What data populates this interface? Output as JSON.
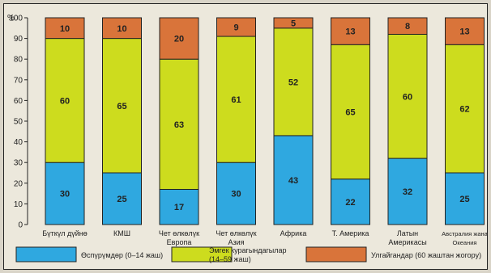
{
  "chart_data": {
    "type": "bar",
    "stacked": true,
    "percent_stacked": true,
    "ylabel": "%",
    "ylim": [
      0,
      100
    ],
    "yticks": [
      0,
      10,
      20,
      30,
      40,
      50,
      60,
      70,
      80,
      90,
      100
    ],
    "categories": [
      [
        "Бүткүл дүйнө"
      ],
      [
        "КМШ"
      ],
      [
        "Чет өлкөлүк",
        "Европа"
      ],
      [
        "Чет өлкөлүк",
        "Азия"
      ],
      [
        "Африка"
      ],
      [
        "Т. Америка"
      ],
      [
        "Латын",
        "Америкасы"
      ],
      [
        "Австралия жана",
        "Океания"
      ]
    ],
    "series": [
      {
        "name": "Өспүрүмдөр (0–14 жаш)",
        "color": "#2fa8e0",
        "values": [
          30,
          25,
          17,
          30,
          43,
          22,
          32,
          25
        ]
      },
      {
        "name": "Эмгек курагындагылар (14–59 жаш)",
        "color": "#cddc1e",
        "values": [
          60,
          65,
          63,
          61,
          52,
          65,
          60,
          62
        ]
      },
      {
        "name": "Улгайгандар (60 жаштан жогору)",
        "color": "#d9743a",
        "values": [
          10,
          10,
          20,
          9,
          5,
          13,
          8,
          13
        ]
      }
    ],
    "legend": {
      "position": "bottom",
      "entries": [
        [
          "Өспүрүмдөр (0–14 жаш)"
        ],
        [
          "Эмгек курагындагылар",
          "(14–59 жаш)"
        ],
        [
          "Улгайгандар (60 жаштан жогору)"
        ]
      ]
    },
    "grid": false
  }
}
